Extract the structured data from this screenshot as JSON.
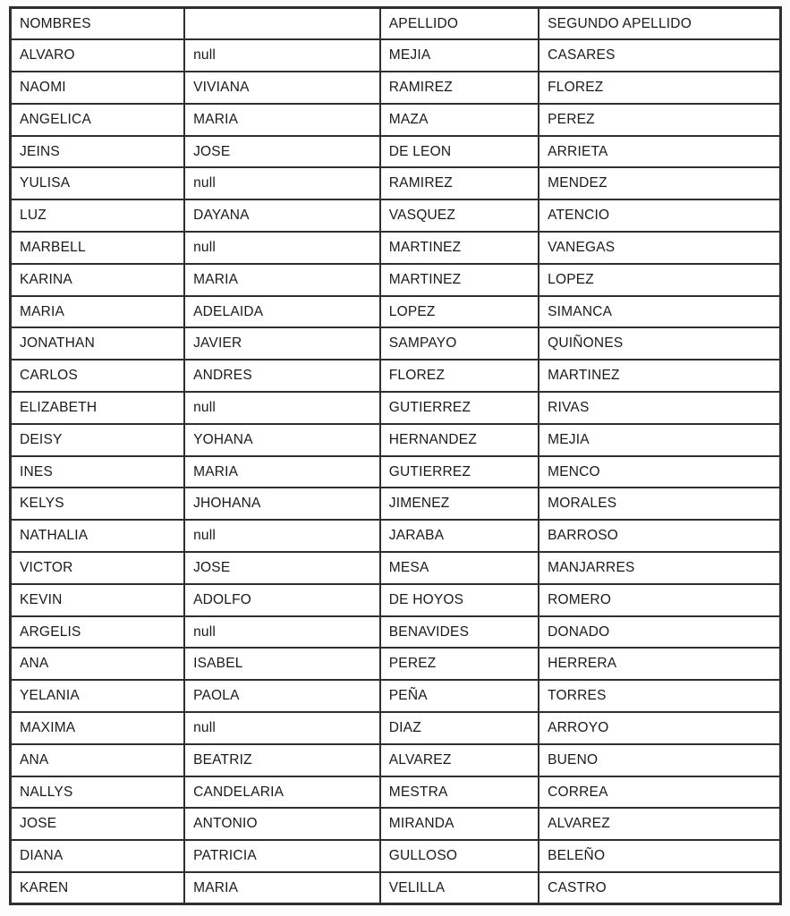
{
  "colors": {
    "border": "#2f2f2f",
    "text": "#1a1a1a",
    "background": "#fdfdfd"
  },
  "table": {
    "columns": [
      "NOMBRES",
      "",
      "APELLIDO",
      "SEGUNDO APELLIDO"
    ],
    "null_display": "null",
    "rows": [
      [
        "ALVARO",
        "null",
        "MEJIA",
        "CASARES"
      ],
      [
        "NAOMI",
        "VIVIANA",
        "RAMIREZ",
        "FLOREZ"
      ],
      [
        "ANGELICA",
        "MARIA",
        "MAZA",
        "PEREZ"
      ],
      [
        "JEINS",
        "JOSE",
        "DE LEON",
        "ARRIETA"
      ],
      [
        "YULISA",
        "null",
        "RAMIREZ",
        "MENDEZ"
      ],
      [
        "LUZ",
        "DAYANA",
        "VASQUEZ",
        "ATENCIO"
      ],
      [
        "MARBELL",
        "null",
        "MARTINEZ",
        "VANEGAS"
      ],
      [
        "KARINA",
        "MARIA",
        "MARTINEZ",
        "LOPEZ"
      ],
      [
        "MARIA",
        "ADELAIDA",
        "LOPEZ",
        "SIMANCA"
      ],
      [
        "JONATHAN",
        "JAVIER",
        "SAMPAYO",
        "QUIÑONES"
      ],
      [
        "CARLOS",
        "ANDRES",
        "FLOREZ",
        "MARTINEZ"
      ],
      [
        "ELIZABETH",
        "null",
        "GUTIERREZ",
        "RIVAS"
      ],
      [
        "DEISY",
        "YOHANA",
        "HERNANDEZ",
        "MEJIA"
      ],
      [
        "INES",
        "MARIA",
        "GUTIERREZ",
        "MENCO"
      ],
      [
        "KELYS",
        "JHOHANA",
        "JIMENEZ",
        "MORALES"
      ],
      [
        "NATHALIA",
        "null",
        "JARABA",
        "BARROSO"
      ],
      [
        "VICTOR",
        "JOSE",
        "MESA",
        "MANJARRES"
      ],
      [
        "KEVIN",
        "ADOLFO",
        "DE HOYOS",
        "ROMERO"
      ],
      [
        "ARGELIS",
        "null",
        "BENAVIDES",
        "DONADO"
      ],
      [
        "ANA",
        "ISABEL",
        "PEREZ",
        "HERRERA"
      ],
      [
        "YELANIA",
        "PAOLA",
        "PEÑA",
        "TORRES"
      ],
      [
        "MAXIMA",
        "null",
        "DIAZ",
        "ARROYO"
      ],
      [
        "ANA",
        "BEATRIZ",
        "ALVAREZ",
        "BUENO"
      ],
      [
        "NALLYS",
        "CANDELARIA",
        "MESTRA",
        "CORREA"
      ],
      [
        "JOSE",
        "ANTONIO",
        "MIRANDA",
        "ALVAREZ"
      ],
      [
        "DIANA",
        "PATRICIA",
        "GULLOSO",
        "BELEÑO"
      ],
      [
        "KAREN",
        "MARIA",
        "VELILLA",
        "CASTRO"
      ]
    ]
  }
}
